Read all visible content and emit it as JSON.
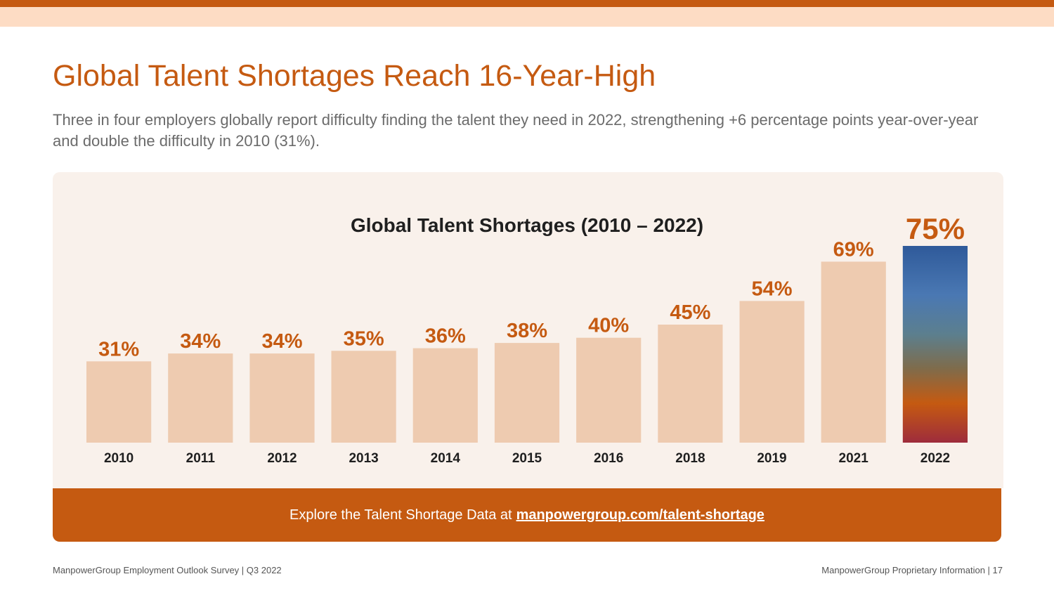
{
  "slide": {
    "title": "Global Talent Shortages Reach 16-Year-High",
    "subtitle": "Three in four employers globally report difficulty finding the talent they need in 2022, strengthening +6 percentage points year-over-year and double the difficulty in 2010 (31%)."
  },
  "cta": {
    "text": "Explore the Talent Shortage Data at",
    "link": "manpowergroup.com/talent-shortage"
  },
  "footer": {
    "left": "ManpowerGroup  Employment Outlook Survey  |  Q3 2022",
    "right": "ManpowerGroup  Proprietary Information  |  17"
  },
  "colors": {
    "accent": "#c55a11",
    "bar": "#eecbb0",
    "panel": "#f9f1eb",
    "highlight_gradient": [
      "#3f6fae",
      "#4b7aa8",
      "#5a7d86",
      "#7a6a4f",
      "#c55a11",
      "#a3303a"
    ]
  },
  "chart_data": {
    "type": "bar",
    "title": "Global Talent Shortages (2010 – 2022)",
    "categories": [
      "2010",
      "2011",
      "2012",
      "2013",
      "2014",
      "2015",
      "2016",
      "2018",
      "2019",
      "2021",
      "2022"
    ],
    "values": [
      31,
      34,
      34,
      35,
      36,
      38,
      40,
      45,
      54,
      69,
      75
    ],
    "labels": [
      "31%",
      "34%",
      "34%",
      "35%",
      "36%",
      "38%",
      "40%",
      "45%",
      "54%",
      "69%",
      "75%"
    ],
    "highlight": "2022",
    "ylim": [
      0,
      75
    ],
    "grid": false,
    "legend": "none"
  }
}
